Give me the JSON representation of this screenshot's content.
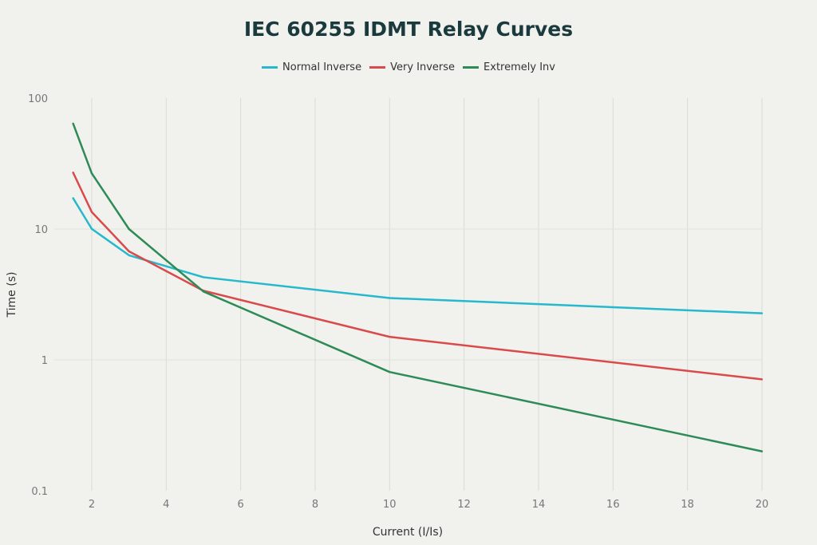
{
  "chart_data": {
    "type": "line",
    "title": "IEC 60255 IDMT Relay Curves",
    "xlabel": "Current (I/Is)",
    "ylabel": "Time (s)",
    "x": [
      1.5,
      2,
      3,
      5,
      10,
      20
    ],
    "series": [
      {
        "name": "Normal Inverse",
        "color": "#26b8cc",
        "values": [
          17.2,
          10.03,
          6.3,
          4.28,
          2.97,
          2.27
        ]
      },
      {
        "name": "Very Inverse",
        "color": "#d94a4a",
        "values": [
          27.0,
          13.5,
          6.75,
          3.375,
          1.5,
          0.71
        ]
      },
      {
        "name": "Extremely Inv",
        "color": "#2e8b57",
        "values": [
          64.0,
          26.67,
          10.0,
          3.33,
          0.808,
          0.2
        ]
      }
    ],
    "xlim": [
      1,
      20
    ],
    "ylim": [
      0.1,
      100
    ],
    "yscale": "log",
    "xticks": [
      "2",
      "4",
      "6",
      "8",
      "10",
      "12",
      "14",
      "16",
      "18",
      "20"
    ],
    "yticks": [
      "0.1",
      "1",
      "10",
      "100"
    ],
    "grid": true,
    "legend": "top-center"
  }
}
